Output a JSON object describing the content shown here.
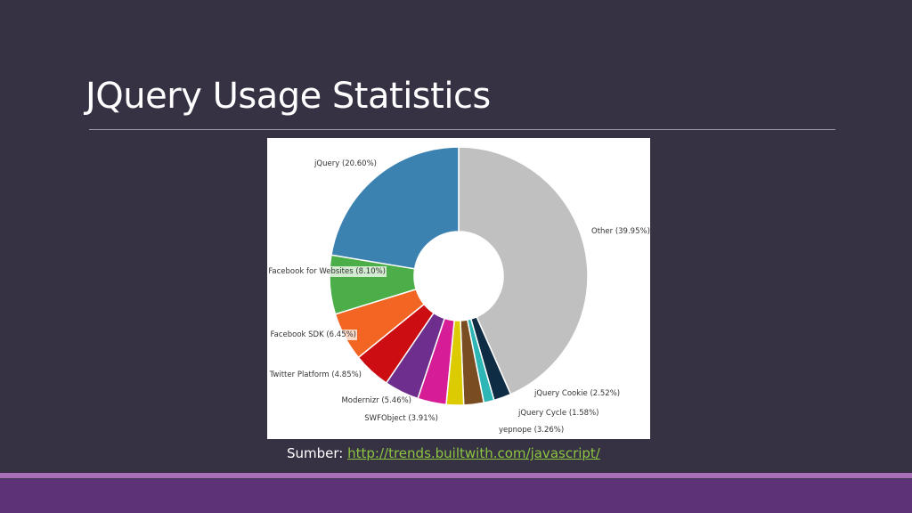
{
  "slide": {
    "title": "JQuery Usage Statistics",
    "source_label": "Sumber:",
    "source_link": "http://trends.builtwith.com/javascript/"
  },
  "chart_data": {
    "type": "pie",
    "style": "donut",
    "title": "",
    "slices": [
      {
        "name": "Other",
        "label": "Other (39.95%)",
        "value": 39.95,
        "color": "#c0c0c0"
      },
      {
        "name": "",
        "label": "",
        "value": 2.0,
        "color": "#0e2d45"
      },
      {
        "name": "",
        "label": "",
        "value": 1.2,
        "color": "#2eb5b5"
      },
      {
        "name": "",
        "label": "",
        "value": 2.3,
        "color": "#7a4c22"
      },
      {
        "name": "",
        "label": "",
        "value": 2.0,
        "color": "#dccb00"
      },
      {
        "name": "",
        "label": "",
        "value": 3.3,
        "color": "#d61c97"
      },
      {
        "name": "",
        "label": "",
        "value": 4.0,
        "color": "#6d2e8e"
      },
      {
        "name": "",
        "label": "",
        "value": 4.3,
        "color": "#cc0e12"
      },
      {
        "name": "",
        "label": "",
        "value": 5.6,
        "color": "#f26522"
      },
      {
        "name": "",
        "label": "",
        "value": 6.8,
        "color": "#4cae49"
      },
      {
        "name": "jQuery",
        "label": "jQuery (20.60%)",
        "value": 20.6,
        "color": "#3c82b0"
      }
    ],
    "labels": [
      {
        "text": "jQuery (20.60%)"
      },
      {
        "text": "Other (39.95%)"
      },
      {
        "text": "Facebook for Websites (8.10%)"
      },
      {
        "text": "Facebook SDK (6.45%)"
      },
      {
        "text": "Twitter Platform (4.85%)"
      },
      {
        "text": "Modernizr (5.46%)"
      },
      {
        "text": "SWFObject (3.91%)"
      },
      {
        "text": "jQuery Cookie (2.52%)"
      },
      {
        "text": "jQuery Cycle (1.58%)"
      },
      {
        "text": "yepnope (3.26%)"
      }
    ]
  },
  "colors": {
    "background": "#363244",
    "footer_band": "#5e3276",
    "footer_stripe": "#a96fb8",
    "link": "#8cc63f"
  }
}
